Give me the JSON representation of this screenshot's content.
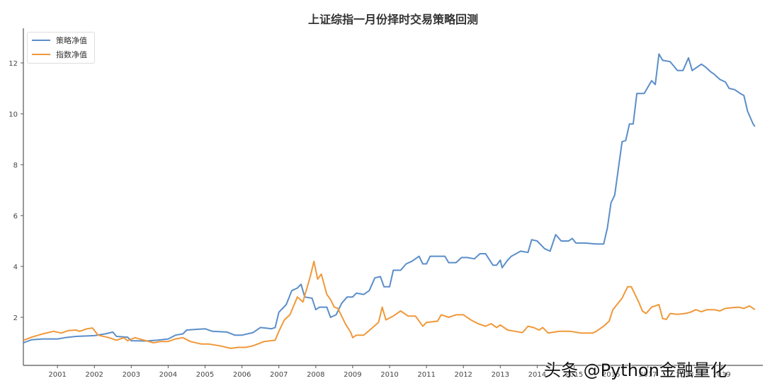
{
  "chart_data": {
    "type": "line",
    "title": "上证综指一月份择时交易策略回测",
    "xlabel": "",
    "ylabel": "",
    "xlim": [
      2000.08,
      2019.9
    ],
    "ylim": [
      0.2,
      13.2
    ],
    "grid": false,
    "legend_position": "upper left",
    "x_ticks": [
      "2001",
      "2002",
      "2003",
      "2004",
      "2005",
      "2006",
      "2007",
      "2008",
      "2009",
      "2010",
      "2011",
      "2012",
      "2013",
      "2014",
      "2015",
      "2016",
      "2017",
      "2018",
      "2019"
    ],
    "y_ticks": [
      2,
      4,
      6,
      8,
      10,
      12
    ],
    "series": [
      {
        "name": "策略净值",
        "color": "#5b8ec9",
        "points": [
          [
            2000.08,
            1.0
          ],
          [
            2000.3,
            1.12
          ],
          [
            2000.6,
            1.15
          ],
          [
            2001.0,
            1.15
          ],
          [
            2001.2,
            1.2
          ],
          [
            2001.5,
            1.25
          ],
          [
            2002.0,
            1.28
          ],
          [
            2002.3,
            1.35
          ],
          [
            2002.5,
            1.42
          ],
          [
            2002.6,
            1.25
          ],
          [
            2002.9,
            1.22
          ],
          [
            2003.0,
            1.08
          ],
          [
            2003.4,
            1.07
          ],
          [
            2003.7,
            1.1
          ],
          [
            2004.0,
            1.15
          ],
          [
            2004.2,
            1.3
          ],
          [
            2004.4,
            1.35
          ],
          [
            2004.5,
            1.5
          ],
          [
            2004.7,
            1.52
          ],
          [
            2005.0,
            1.55
          ],
          [
            2005.2,
            1.45
          ],
          [
            2005.6,
            1.42
          ],
          [
            2005.8,
            1.3
          ],
          [
            2006.0,
            1.3
          ],
          [
            2006.3,
            1.4
          ],
          [
            2006.5,
            1.6
          ],
          [
            2006.8,
            1.55
          ],
          [
            2006.9,
            1.6
          ],
          [
            2007.0,
            2.2
          ],
          [
            2007.2,
            2.5
          ],
          [
            2007.35,
            3.05
          ],
          [
            2007.5,
            3.15
          ],
          [
            2007.6,
            3.3
          ],
          [
            2007.7,
            2.8
          ],
          [
            2007.9,
            2.75
          ],
          [
            2008.0,
            2.3
          ],
          [
            2008.1,
            2.4
          ],
          [
            2008.3,
            2.4
          ],
          [
            2008.4,
            2.0
          ],
          [
            2008.55,
            2.1
          ],
          [
            2008.7,
            2.55
          ],
          [
            2008.85,
            2.8
          ],
          [
            2009.0,
            2.8
          ],
          [
            2009.1,
            2.95
          ],
          [
            2009.3,
            2.9
          ],
          [
            2009.45,
            3.05
          ],
          [
            2009.6,
            3.55
          ],
          [
            2009.75,
            3.6
          ],
          [
            2009.85,
            3.2
          ],
          [
            2010.0,
            3.2
          ],
          [
            2010.1,
            3.85
          ],
          [
            2010.3,
            3.85
          ],
          [
            2010.45,
            4.1
          ],
          [
            2010.6,
            4.2
          ],
          [
            2010.8,
            4.4
          ],
          [
            2010.9,
            4.1
          ],
          [
            2011.0,
            4.1
          ],
          [
            2011.1,
            4.4
          ],
          [
            2011.5,
            4.4
          ],
          [
            2011.6,
            4.15
          ],
          [
            2011.8,
            4.15
          ],
          [
            2011.95,
            4.35
          ],
          [
            2012.1,
            4.35
          ],
          [
            2012.3,
            4.3
          ],
          [
            2012.45,
            4.5
          ],
          [
            2012.6,
            4.5
          ],
          [
            2012.8,
            4.05
          ],
          [
            2012.9,
            4.05
          ],
          [
            2013.0,
            4.25
          ],
          [
            2013.05,
            3.95
          ],
          [
            2013.2,
            4.25
          ],
          [
            2013.3,
            4.4
          ],
          [
            2013.55,
            4.6
          ],
          [
            2013.75,
            4.55
          ],
          [
            2013.85,
            5.05
          ],
          [
            2014.0,
            5.0
          ],
          [
            2014.2,
            4.7
          ],
          [
            2014.35,
            4.6
          ],
          [
            2014.5,
            5.25
          ],
          [
            2014.65,
            5.0
          ],
          [
            2014.85,
            5.0
          ],
          [
            2014.95,
            5.1
          ],
          [
            2015.05,
            4.92
          ],
          [
            2015.3,
            4.92
          ],
          [
            2015.6,
            4.88
          ],
          [
            2015.8,
            4.88
          ],
          [
            2015.9,
            5.5
          ],
          [
            2016.0,
            6.5
          ],
          [
            2016.1,
            6.8
          ],
          [
            2016.3,
            8.9
          ],
          [
            2016.4,
            8.95
          ],
          [
            2016.5,
            9.6
          ],
          [
            2016.6,
            9.6
          ],
          [
            2016.7,
            10.8
          ],
          [
            2016.9,
            10.8
          ],
          [
            2017.1,
            11.3
          ],
          [
            2017.2,
            11.15
          ],
          [
            2017.3,
            12.35
          ],
          [
            2017.4,
            12.1
          ],
          [
            2017.6,
            12.05
          ],
          [
            2017.8,
            11.7
          ],
          [
            2017.95,
            11.7
          ],
          [
            2018.1,
            12.2
          ],
          [
            2018.2,
            11.7
          ],
          [
            2018.3,
            11.8
          ],
          [
            2018.45,
            11.95
          ],
          [
            2018.55,
            11.85
          ],
          [
            2018.7,
            11.65
          ],
          [
            2018.8,
            11.55
          ],
          [
            2018.95,
            11.35
          ],
          [
            2019.1,
            11.25
          ],
          [
            2019.2,
            11.0
          ],
          [
            2019.35,
            10.95
          ],
          [
            2019.5,
            10.8
          ],
          [
            2019.6,
            10.72
          ],
          [
            2019.7,
            10.1
          ],
          [
            2019.85,
            9.6
          ],
          [
            2019.9,
            9.5
          ]
        ]
      },
      {
        "name": "指数净值",
        "color": "#f0983a",
        "points": [
          [
            2000.08,
            1.1
          ],
          [
            2000.3,
            1.22
          ],
          [
            2000.6,
            1.35
          ],
          [
            2000.9,
            1.45
          ],
          [
            2001.1,
            1.38
          ],
          [
            2001.3,
            1.48
          ],
          [
            2001.5,
            1.5
          ],
          [
            2001.6,
            1.45
          ],
          [
            2001.8,
            1.55
          ],
          [
            2001.95,
            1.58
          ],
          [
            2002.1,
            1.3
          ],
          [
            2002.4,
            1.2
          ],
          [
            2002.6,
            1.1
          ],
          [
            2002.8,
            1.2
          ],
          [
            2002.9,
            1.08
          ],
          [
            2003.1,
            1.2
          ],
          [
            2003.3,
            1.12
          ],
          [
            2003.6,
            1.0
          ],
          [
            2003.8,
            1.05
          ],
          [
            2004.0,
            1.05
          ],
          [
            2004.2,
            1.15
          ],
          [
            2004.4,
            1.2
          ],
          [
            2004.6,
            1.05
          ],
          [
            2004.9,
            0.95
          ],
          [
            2005.1,
            0.95
          ],
          [
            2005.4,
            0.88
          ],
          [
            2005.7,
            0.78
          ],
          [
            2005.9,
            0.82
          ],
          [
            2006.1,
            0.82
          ],
          [
            2006.3,
            0.88
          ],
          [
            2006.6,
            1.05
          ],
          [
            2006.9,
            1.1
          ],
          [
            2007.0,
            1.45
          ],
          [
            2007.15,
            1.9
          ],
          [
            2007.3,
            2.1
          ],
          [
            2007.5,
            2.8
          ],
          [
            2007.65,
            2.6
          ],
          [
            2007.75,
            3.1
          ],
          [
            2007.85,
            3.6
          ],
          [
            2007.95,
            4.2
          ],
          [
            2008.05,
            3.5
          ],
          [
            2008.15,
            3.7
          ],
          [
            2008.3,
            2.9
          ],
          [
            2008.4,
            2.7
          ],
          [
            2008.5,
            2.4
          ],
          [
            2008.6,
            2.35
          ],
          [
            2008.8,
            1.75
          ],
          [
            2008.95,
            1.4
          ],
          [
            2009.0,
            1.2
          ],
          [
            2009.1,
            1.3
          ],
          [
            2009.3,
            1.3
          ],
          [
            2009.5,
            1.55
          ],
          [
            2009.7,
            1.8
          ],
          [
            2009.8,
            2.4
          ],
          [
            2009.9,
            1.9
          ],
          [
            2010.1,
            2.05
          ],
          [
            2010.3,
            2.25
          ],
          [
            2010.5,
            2.05
          ],
          [
            2010.7,
            2.05
          ],
          [
            2010.9,
            1.65
          ],
          [
            2011.0,
            1.8
          ],
          [
            2011.3,
            1.85
          ],
          [
            2011.4,
            2.1
          ],
          [
            2011.6,
            2.0
          ],
          [
            2011.8,
            2.1
          ],
          [
            2012.0,
            2.1
          ],
          [
            2012.2,
            1.9
          ],
          [
            2012.4,
            1.75
          ],
          [
            2012.6,
            1.65
          ],
          [
            2012.75,
            1.75
          ],
          [
            2012.9,
            1.6
          ],
          [
            2013.0,
            1.7
          ],
          [
            2013.2,
            1.5
          ],
          [
            2013.4,
            1.45
          ],
          [
            2013.6,
            1.4
          ],
          [
            2013.75,
            1.65
          ],
          [
            2013.9,
            1.6
          ],
          [
            2014.05,
            1.5
          ],
          [
            2014.15,
            1.6
          ],
          [
            2014.3,
            1.38
          ],
          [
            2014.6,
            1.45
          ],
          [
            2014.9,
            1.45
          ],
          [
            2015.2,
            1.38
          ],
          [
            2015.5,
            1.38
          ],
          [
            2015.6,
            1.45
          ],
          [
            2015.8,
            1.65
          ],
          [
            2015.95,
            1.85
          ],
          [
            2016.05,
            2.3
          ],
          [
            2016.3,
            2.75
          ],
          [
            2016.45,
            3.2
          ],
          [
            2016.55,
            3.2
          ],
          [
            2016.75,
            2.6
          ],
          [
            2016.85,
            2.25
          ],
          [
            2016.95,
            2.15
          ],
          [
            2017.1,
            2.4
          ],
          [
            2017.3,
            2.5
          ],
          [
            2017.4,
            1.95
          ],
          [
            2017.5,
            1.92
          ],
          [
            2017.6,
            2.15
          ],
          [
            2017.8,
            2.12
          ],
          [
            2018.0,
            2.15
          ],
          [
            2018.15,
            2.2
          ],
          [
            2018.3,
            2.3
          ],
          [
            2018.45,
            2.22
          ],
          [
            2018.6,
            2.3
          ],
          [
            2018.8,
            2.3
          ],
          [
            2018.95,
            2.25
          ],
          [
            2019.1,
            2.35
          ],
          [
            2019.3,
            2.38
          ],
          [
            2019.45,
            2.4
          ],
          [
            2019.6,
            2.35
          ],
          [
            2019.75,
            2.45
          ],
          [
            2019.9,
            2.3
          ]
        ]
      }
    ],
    "annotations": []
  },
  "legend": {
    "items": [
      {
        "label": "策略净值",
        "color": "#5b8ec9"
      },
      {
        "label": "指数净值",
        "color": "#f0983a"
      }
    ]
  },
  "watermark": "头条 @Python金融量化"
}
